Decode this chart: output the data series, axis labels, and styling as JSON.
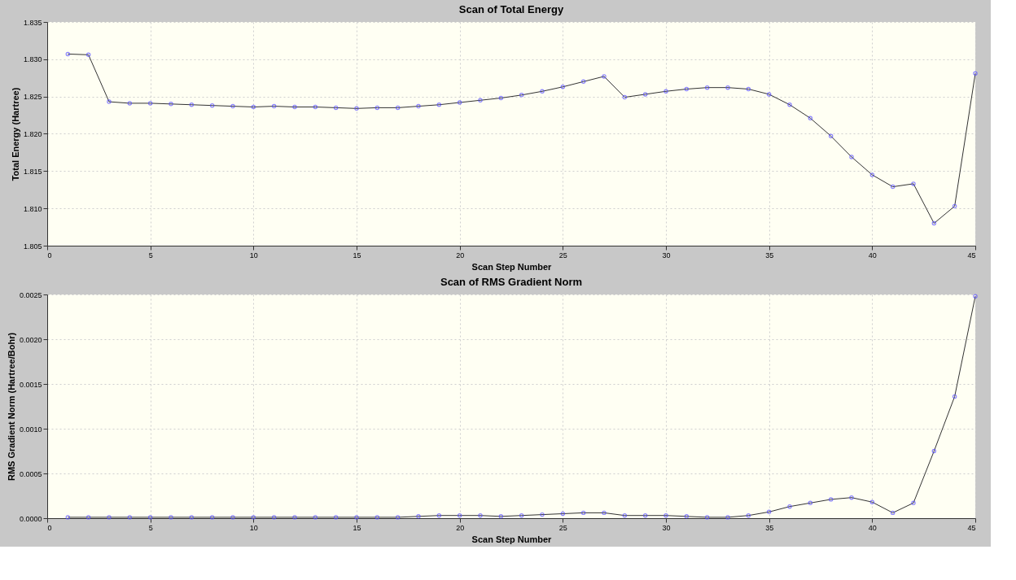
{
  "chart_data": [
    {
      "type": "line",
      "title": "Scan of Total Energy",
      "xlabel": "Scan Step Number",
      "ylabel": "Total Energy (Hartree)",
      "x": [
        1,
        2,
        3,
        4,
        5,
        6,
        7,
        8,
        9,
        10,
        11,
        12,
        13,
        14,
        15,
        16,
        17,
        18,
        19,
        20,
        21,
        22,
        23,
        24,
        25,
        26,
        27,
        28,
        29,
        30,
        31,
        32,
        33,
        34,
        35,
        36,
        37,
        38,
        39,
        40,
        41,
        42,
        43,
        44,
        45
      ],
      "series": [
        {
          "color": "#5a50ff",
          "values": [
            1.8307,
            1.8306,
            1.8243,
            1.8241,
            1.8241,
            1.824,
            1.8239,
            1.8238,
            1.8237,
            1.8236,
            1.8237,
            1.8236,
            1.8236,
            1.8235,
            1.8234,
            1.8235,
            1.8235,
            1.8237,
            1.8239,
            1.8242,
            1.8245,
            1.8248,
            1.8252,
            1.8257,
            1.8263,
            1.827,
            1.8277,
            1.8249,
            1.8253,
            1.8257,
            1.826,
            1.8262,
            1.8262,
            1.826,
            1.8253,
            1.8239,
            1.8221,
            1.8197,
            1.8169,
            1.8145,
            1.8129,
            1.8133,
            1.808,
            1.8103,
            1.8281
          ]
        }
      ],
      "xlim": [
        0,
        45
      ],
      "xticks": [
        0,
        5,
        10,
        15,
        20,
        25,
        30,
        35,
        40,
        45
      ],
      "ylim": [
        1.805,
        1.835
      ],
      "yticks": [
        {
          "value": 1.805,
          "label": "1.805"
        },
        {
          "value": 1.81,
          "label": "1.810"
        },
        {
          "value": 1.815,
          "label": "1.815"
        },
        {
          "value": 1.82,
          "label": "1.820"
        },
        {
          "value": 1.825,
          "label": "1.825"
        },
        {
          "value": 1.83,
          "label": "1.830"
        },
        {
          "value": 1.835,
          "label": "1.835"
        }
      ],
      "grid": true,
      "marker": "circle",
      "line_style": "solid"
    },
    {
      "type": "line",
      "title": "Scan of RMS Gradient Norm",
      "xlabel": "Scan Step Number",
      "ylabel": "RMS Gradient Norm (Hartree/Bohr)",
      "x": [
        1,
        2,
        3,
        4,
        5,
        6,
        7,
        8,
        9,
        10,
        11,
        12,
        13,
        14,
        15,
        16,
        17,
        18,
        19,
        20,
        21,
        22,
        23,
        24,
        25,
        26,
        27,
        28,
        29,
        30,
        31,
        32,
        33,
        34,
        35,
        36,
        37,
        38,
        39,
        40,
        41,
        42,
        43,
        44,
        45
      ],
      "series": [
        {
          "color": "#5a50ff",
          "values": [
            1e-05,
            1e-05,
            1e-05,
            1e-05,
            1e-05,
            1e-05,
            1e-05,
            1e-05,
            1e-05,
            1e-05,
            1e-05,
            1e-05,
            1e-05,
            1e-05,
            1e-05,
            1e-05,
            1e-05,
            2e-05,
            3e-05,
            3e-05,
            3e-05,
            2e-05,
            3e-05,
            4e-05,
            5e-05,
            6e-05,
            6e-05,
            3e-05,
            3e-05,
            3e-05,
            2e-05,
            1e-05,
            1e-05,
            3e-05,
            7e-05,
            0.00013,
            0.00017,
            0.00021,
            0.00023,
            0.00018,
            6e-05,
            0.00017,
            0.00075,
            0.00136,
            0.00248
          ]
        }
      ],
      "xlim": [
        0,
        45
      ],
      "xticks": [
        0,
        5,
        10,
        15,
        20,
        25,
        30,
        35,
        40,
        45
      ],
      "ylim": [
        0,
        0.0025
      ],
      "yticks": [
        {
          "value": 0,
          "label": "0.0000"
        },
        {
          "value": 0.0005,
          "label": "0.0005"
        },
        {
          "value": 0.001,
          "label": "0.0010"
        },
        {
          "value": 0.0015,
          "label": "0.0015"
        },
        {
          "value": 0.002,
          "label": "0.0020"
        },
        {
          "value": 0.0025,
          "label": "0.0025"
        }
      ],
      "grid": true,
      "marker": "circle",
      "line_style": "solid"
    }
  ]
}
